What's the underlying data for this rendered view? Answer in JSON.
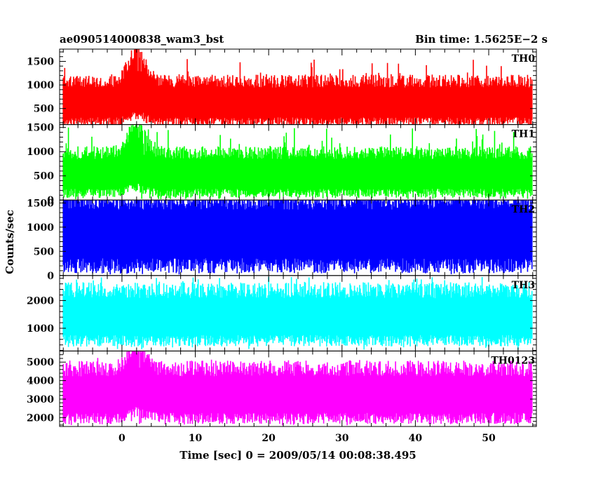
{
  "header": {
    "title": "ae090514000838_wam3_bst",
    "bin_time": "Bin time: 1.5625E−2 s"
  },
  "chart_data": {
    "type": "line",
    "xlabel": "Time [sec] 0 = 2009/05/14 00:08:38.495",
    "ylabel": "Counts/sec",
    "xlim": [
      -8.5,
      56.5
    ],
    "xticks": [
      0,
      10,
      20,
      30,
      40,
      50
    ],
    "x_minor_step": 2,
    "data_range": [
      -8,
      56
    ],
    "burst_time": 2,
    "panels": [
      {
        "name": "TH0",
        "color": "#ff0000",
        "ylim": [
          160,
          1760
        ],
        "yticks": [
          500,
          1000,
          1500
        ],
        "y_minor_step": 100,
        "base_low": 220,
        "base_high": 1000,
        "spike_max": 1550,
        "burst_low": 350,
        "burst_high": 1650
      },
      {
        "name": "TH1",
        "color": "#00ff00",
        "ylim": [
          0,
          1560
        ],
        "yticks": [
          0,
          500,
          1000,
          1500
        ],
        "y_minor_step": 100,
        "base_low": 140,
        "base_high": 900,
        "spike_max": 1500,
        "burst_low": 250,
        "burst_high": 1500
      },
      {
        "name": "TH2",
        "color": "#0000ff",
        "ylim": [
          0,
          1560
        ],
        "yticks": [
          0,
          500,
          1000,
          1500
        ],
        "y_minor_step": 100,
        "base_low": 200,
        "base_high": 1450,
        "spike_max": 1560,
        "burst_low": 200,
        "burst_high": 1450
      },
      {
        "name": "TH3",
        "color": "#00ffff",
        "ylim": [
          180,
          2900
        ],
        "yticks": [
          1000,
          2000
        ],
        "y_minor_step": 200,
        "base_low": 550,
        "base_high": 2200,
        "spike_max": 2850,
        "burst_low": 550,
        "burst_high": 2200
      },
      {
        "name": "TH0123",
        "color": "#ff00ff",
        "ylim": [
          1520,
          5600
        ],
        "yticks": [
          2000,
          3000,
          4000,
          5000
        ],
        "y_minor_step": 200,
        "base_low": 1950,
        "base_high": 4400,
        "spike_max": 5250,
        "burst_low": 2300,
        "burst_high": 5500
      }
    ]
  }
}
